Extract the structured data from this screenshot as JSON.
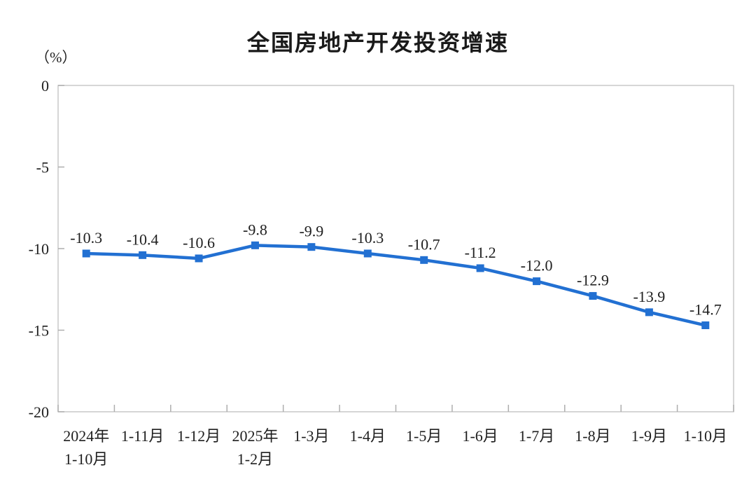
{
  "chart_data": {
    "type": "line",
    "title": "全国房地产开发投资增速",
    "ylabel": "（%）",
    "xlabel": "",
    "categories": [
      "2024年1-10月",
      "1-11月",
      "1-12月",
      "2025年1-2月",
      "1-3月",
      "1-4月",
      "1-5月",
      "1-6月",
      "1-7月",
      "1-8月",
      "1-9月",
      "1-10月"
    ],
    "categories_lines": [
      [
        "2024年",
        "1-10月"
      ],
      [
        "1-11月"
      ],
      [
        "1-12月"
      ],
      [
        "2025年",
        "1-2月"
      ],
      [
        "1-3月"
      ],
      [
        "1-4月"
      ],
      [
        "1-5月"
      ],
      [
        "1-6月"
      ],
      [
        "1-7月"
      ],
      [
        "1-8月"
      ],
      [
        "1-9月"
      ],
      [
        "1-10月"
      ]
    ],
    "values": [
      -10.3,
      -10.4,
      -10.6,
      -9.8,
      -9.9,
      -10.3,
      -10.7,
      -11.2,
      -12.0,
      -12.9,
      -13.9,
      -14.7
    ],
    "data_labels": [
      "-10.3",
      "-10.4",
      "-10.6",
      "-9.8",
      "-9.9",
      "-10.3",
      "-10.7",
      "-11.2",
      "-12.0",
      "-12.9",
      "-13.9",
      "-14.7"
    ],
    "ylim": [
      -20,
      0
    ],
    "yticks": [
      0,
      -5,
      -10,
      -15,
      -20
    ],
    "ytick_labels": [
      "0",
      "-5",
      "-10",
      "-15",
      "-20"
    ],
    "grid": false,
    "legend": "none",
    "series_name": "全国房地产开发投资增速",
    "marker": "square",
    "colors": {
      "line": "#2270D2",
      "marker": "#2270D2",
      "plot_border": "#c9c9c9",
      "tick": "#aeaeae",
      "text": "#1f1f1f"
    }
  }
}
